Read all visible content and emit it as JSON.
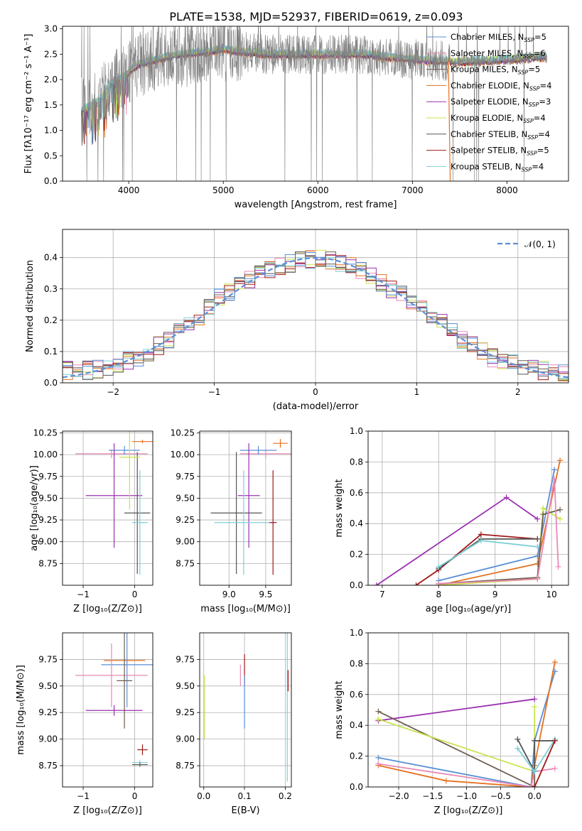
{
  "title": "PLATE=1538, MJD=52937, FIBERID=0619, z=0.093",
  "colors": {
    "chabrier_miles": "#5a8fd6",
    "salpeter_miles": "#e889b4",
    "kroupa_miles": "#6f5e4f",
    "chabrier_elodie": "#e5711f",
    "salpeter_elodie": "#9b2fb0",
    "kroupa_elodie": "#c9e34c",
    "chabrier_stelib": "#555555",
    "salpeter_stelib": "#a01818",
    "kroupa_stelib": "#7dcfd6",
    "data": "#808080",
    "normal": "#5a8fd6"
  },
  "chart_data": [
    {
      "id": "spectrum",
      "type": "line",
      "xlabel": "wavelength [Angstrom, rest frame]",
      "ylabel": "Flux [fλ10⁻¹⁷ erg cm⁻² s⁻¹ A⁻¹]",
      "xlim": [
        3300,
        8650
      ],
      "ylim": [
        0,
        3.05
      ],
      "xticks": [
        "4000",
        "5000",
        "6000",
        "7000",
        "8000"
      ],
      "yticks": [
        "0.0",
        "0.5",
        "1.0",
        "1.5",
        "2.0",
        "2.5",
        "3.0"
      ],
      "continuum": {
        "x": [
          3500,
          3600,
          3700,
          3800,
          3900,
          4000,
          4100,
          4200,
          4400,
          4600,
          4800,
          5000,
          5200,
          5500,
          6000,
          6500,
          7000,
          7500,
          8000,
          8400
        ],
        "y": [
          1.4,
          1.5,
          1.6,
          1.9,
          2.0,
          2.15,
          2.3,
          2.35,
          2.45,
          2.5,
          2.55,
          2.6,
          2.55,
          2.5,
          2.5,
          2.5,
          2.4,
          2.35,
          2.4,
          2.45
        ]
      },
      "legend": [
        {
          "label": "Chabrier MILES, N",
          "sub": "SSP",
          "n": "=5"
        },
        {
          "label": "Salpeter MILES, N",
          "sub": "SSP",
          "n": "=6"
        },
        {
          "label": "Kroupa MILES, N",
          "sub": "SSP",
          "n": "=5"
        },
        {
          "label": "Chabrier ELODIE, N",
          "sub": "SSP",
          "n": "=4"
        },
        {
          "label": "Salpeter ELODIE, N",
          "sub": "SSP",
          "n": "=3"
        },
        {
          "label": "Kroupa ELODIE, N",
          "sub": "SSP",
          "n": "=4"
        },
        {
          "label": "Chabrier STELIB, N",
          "sub": "SSP",
          "n": "=4"
        },
        {
          "label": "Salpeter STELIB, N",
          "sub": "SSP",
          "n": "=5"
        },
        {
          "label": "Kroupa STELIB, N",
          "sub": "SSP",
          "n": "=4"
        }
      ]
    },
    {
      "id": "residuals",
      "type": "bar",
      "xlabel": "(data-model)/error",
      "ylabel": "Normed distribution",
      "xlim": [
        -2.5,
        2.5
      ],
      "ylim": [
        0,
        0.49
      ],
      "xticks": [
        "−2",
        "−1",
        "0",
        "1",
        "2"
      ],
      "yticks": [
        "0.0",
        "0.1",
        "0.2",
        "0.3",
        "0.4"
      ],
      "legend": "𝒩(0, 1)",
      "grid": true,
      "bin_width": 0.1,
      "centers": [
        -2.45,
        -2.35,
        -2.25,
        -2.15,
        -2.05,
        -1.95,
        -1.85,
        -1.75,
        -1.65,
        -1.55,
        -1.45,
        -1.35,
        -1.25,
        -1.15,
        -1.05,
        -0.95,
        -0.85,
        -0.75,
        -0.65,
        -0.55,
        -0.45,
        -0.35,
        -0.25,
        -0.15,
        -0.05,
        0.05,
        0.15,
        0.25,
        0.35,
        0.45,
        0.55,
        0.65,
        0.75,
        0.85,
        0.95,
        1.05,
        1.15,
        1.25,
        1.35,
        1.45,
        1.55,
        1.65,
        1.75,
        1.85,
        1.95,
        2.05,
        2.15,
        2.25,
        2.35,
        2.45
      ],
      "base": [
        0.04,
        0.04,
        0.04,
        0.045,
        0.05,
        0.06,
        0.07,
        0.08,
        0.1,
        0.12,
        0.14,
        0.16,
        0.19,
        0.21,
        0.24,
        0.27,
        0.29,
        0.31,
        0.33,
        0.35,
        0.36,
        0.37,
        0.38,
        0.39,
        0.395,
        0.395,
        0.39,
        0.38,
        0.37,
        0.36,
        0.34,
        0.32,
        0.3,
        0.28,
        0.26,
        0.24,
        0.21,
        0.19,
        0.17,
        0.14,
        0.12,
        0.1,
        0.08,
        0.07,
        0.06,
        0.05,
        0.045,
        0.04,
        0.035,
        0.03
      ]
    },
    {
      "id": "age-vs-z",
      "type": "scatter",
      "xlabel": "Z [log₁₀(Z/Z⊙)]",
      "ylabel": "age  [log₁₀(age/yr)]",
      "xlim": [
        -1.4,
        0.35
      ],
      "ylim": [
        8.5,
        10.27
      ],
      "xticks": [
        "−1",
        "0"
      ],
      "yticks": [
        "8.75",
        "9.00",
        "9.25",
        "9.50",
        "9.75",
        "10.00",
        "10.25"
      ],
      "points": [
        {
          "s": "chabrier_elodie",
          "x": 0.15,
          "xerr": 0.2,
          "y": 10.15,
          "yerr": 0.02
        },
        {
          "s": "salpeter_miles",
          "x": -0.45,
          "xerr": 0.7,
          "y": 10.01,
          "yerr": 0.05
        },
        {
          "s": "chabrier_miles",
          "x": -0.2,
          "xerr": 0.3,
          "y": 10.05,
          "yerr": 0.05
        },
        {
          "s": "salpeter_elodie",
          "x": -0.4,
          "xerr": 0.55,
          "y": 9.53,
          "yerr": 0.6
        },
        {
          "s": "chabrier_stelib",
          "x": 0.05,
          "xerr": 0.25,
          "y": 9.33,
          "yerr": 0.7
        },
        {
          "s": "kroupa_stelib",
          "x": 0.1,
          "xerr": 0.15,
          "y": 9.22,
          "yerr": 0.6
        },
        {
          "s": "kroupa_elodie",
          "x": -0.1,
          "xerr": 0.2,
          "y": 9.97,
          "yerr": 0.6
        }
      ]
    },
    {
      "id": "age-vs-mass",
      "type": "scatter",
      "xlabel": "mass [log₁₀(M/M⊙)]",
      "ylabel": "",
      "xlim": [
        8.6,
        9.85
      ],
      "ylim": [
        8.5,
        10.27
      ],
      "xticks": [
        "9.0",
        "9.5"
      ],
      "yticks": [
        "8.75",
        "9.00",
        "9.25",
        "9.50",
        "9.75",
        "10.00",
        "10.25"
      ],
      "points": [
        {
          "s": "chabrier_elodie",
          "x": 9.7,
          "xerr": 0.1,
          "y": 10.13,
          "yerr": 0.05
        },
        {
          "s": "salpeter_miles",
          "x": 9.5,
          "xerr": 0.35,
          "y": 10.01,
          "yerr": 0.05
        },
        {
          "s": "chabrier_miles",
          "x": 9.4,
          "xerr": 0.25,
          "y": 10.05,
          "yerr": 0.05
        },
        {
          "s": "salpeter_elodie",
          "x": 9.27,
          "xerr": 0.15,
          "y": 9.53,
          "yerr": 0.6
        },
        {
          "s": "chabrier_stelib",
          "x": 9.1,
          "xerr": 0.35,
          "y": 9.33,
          "yerr": 0.7
        },
        {
          "s": "kroupa_stelib",
          "x": 9.2,
          "xerr": 0.4,
          "y": 9.22,
          "yerr": 0.6
        },
        {
          "s": "salpeter_stelib",
          "x": 9.6,
          "xerr": 0.05,
          "y": 9.22,
          "yerr": 0.6
        }
      ]
    },
    {
      "id": "weight-vs-age",
      "type": "line",
      "xlabel": "age  [log₁₀(age/yr)]",
      "ylabel": "mass weight",
      "xlim": [
        6.75,
        10.3
      ],
      "ylim": [
        0,
        1.0
      ],
      "xticks": [
        "7",
        "8",
        "9",
        "10"
      ],
      "yticks": [
        "0.0",
        "0.2",
        "0.4",
        "0.6",
        "0.8",
        "1.0"
      ],
      "series": [
        {
          "s": "salpeter_elodie",
          "x": [
            6.9,
            9.2,
            9.75
          ],
          "y": [
            0.0,
            0.57,
            0.43
          ]
        },
        {
          "s": "chabrier_elodie",
          "x": [
            8.0,
            9.75,
            10.15
          ],
          "y": [
            0.0,
            0.14,
            0.81
          ]
        },
        {
          "s": "chabrier_miles",
          "x": [
            8.0,
            9.75,
            10.05
          ],
          "y": [
            0.03,
            0.19,
            0.75
          ]
        },
        {
          "s": "salpeter_stelib",
          "x": [
            7.6,
            8.0,
            8.75,
            9.75
          ],
          "y": [
            0.0,
            0.1,
            0.33,
            0.3
          ]
        },
        {
          "s": "chabrier_stelib",
          "x": [
            8.0,
            8.75,
            9.75
          ],
          "y": [
            0.11,
            0.3,
            0.3
          ]
        },
        {
          "s": "kroupa_stelib",
          "x": [
            8.0,
            8.75,
            9.75
          ],
          "y": [
            0.12,
            0.29,
            0.25
          ]
        },
        {
          "s": "kroupa_elodie",
          "x": [
            8.0,
            9.75,
            9.85,
            10.15
          ],
          "y": [
            0.0,
            0.04,
            0.5,
            0.43
          ]
        },
        {
          "s": "kroupa_miles",
          "x": [
            8.0,
            9.75,
            9.85,
            10.15
          ],
          "y": [
            0.01,
            0.05,
            0.46,
            0.49
          ]
        },
        {
          "s": "salpeter_miles",
          "x": [
            8.0,
            9.75,
            10.05,
            10.12
          ],
          "y": [
            0.01,
            0.04,
            0.69,
            0.12
          ]
        }
      ]
    },
    {
      "id": "mass-vs-z",
      "type": "scatter",
      "xlabel": "Z [log₁₀(Z/Z⊙)]",
      "ylabel": "mass [log₁₀(M/M⊙)]",
      "xlim": [
        -1.4,
        0.35
      ],
      "ylim": [
        8.55,
        10.0
      ],
      "xticks": [
        "−1",
        "0"
      ],
      "yticks": [
        "8.75",
        "9.00",
        "9.25",
        "9.50",
        "9.75"
      ],
      "points": [
        {
          "s": "chabrier_elodie",
          "x": -0.2,
          "xerr": 0.4,
          "y": 9.74,
          "yerr": 0.02
        },
        {
          "s": "chabrier_miles",
          "x": -0.15,
          "xerr": 0.5,
          "y": 9.7,
          "yerr": 0.4
        },
        {
          "s": "salpeter_miles",
          "x": -0.45,
          "xerr": 0.7,
          "y": 9.6,
          "yerr": 0.3
        },
        {
          "s": "kroupa_miles",
          "x": -0.2,
          "xerr": 0.15,
          "y": 9.55,
          "yerr": 0.45
        },
        {
          "s": "salpeter_elodie",
          "x": -0.4,
          "xerr": 0.55,
          "y": 9.27,
          "yerr": 0.05
        },
        {
          "s": "salpeter_stelib",
          "x": 0.15,
          "xerr": 0.1,
          "y": 8.9,
          "yerr": 0.05
        },
        {
          "s": "kroupa_stelib",
          "x": 0.1,
          "xerr": 0.15,
          "y": 8.78,
          "yerr": 0.02
        },
        {
          "s": "chabrier_stelib",
          "x": 0.1,
          "xerr": 0.15,
          "y": 8.76,
          "yerr": 0.02
        }
      ]
    },
    {
      "id": "mass-vs-ebv",
      "type": "scatter",
      "xlabel": "E(B-V)",
      "ylabel": "",
      "xlim": [
        -0.01,
        0.215
      ],
      "ylim": [
        8.55,
        10.0
      ],
      "xticks": [
        "0.0",
        "0.1",
        "0.2"
      ],
      "yticks": [
        "8.75",
        "9.00",
        "9.25",
        "9.50",
        "9.75"
      ],
      "points": [
        {
          "s": "kroupa_elodie",
          "x": 0.002,
          "xerr": 0,
          "y": 9.3,
          "yerr": 0.3
        },
        {
          "s": "salpeter_miles",
          "x": 0.09,
          "xerr": 0,
          "y": 9.6,
          "yerr": 0.1
        },
        {
          "s": "salpeter_stelib",
          "x": 0.1,
          "xerr": 0,
          "y": 9.65,
          "yerr": 0.15
        },
        {
          "s": "chabrier_miles",
          "x": 0.1,
          "xerr": 0,
          "y": 9.35,
          "yerr": 0.25
        },
        {
          "s": "kroupa_stelib",
          "x": 0.205,
          "xerr": 0,
          "y": 9.3,
          "yerr": 0.7
        },
        {
          "s": "salpeter_stelib",
          "x": 0.207,
          "xerr": 0,
          "y": 9.55,
          "yerr": 0.1
        }
      ]
    },
    {
      "id": "weight-vs-z",
      "type": "line",
      "xlabel": "Z [log₁₀(Z/Z⊙)]",
      "ylabel": "mass weight",
      "xlim": [
        -2.45,
        0.5
      ],
      "ylim": [
        0,
        1.0
      ],
      "xticks": [
        "−2.0",
        "−1.5",
        "−1.0",
        "−0.5",
        "0.0"
      ],
      "yticks": [
        "0.0",
        "0.2",
        "0.4",
        "0.6",
        "0.8",
        "1.0"
      ],
      "series": [
        {
          "s": "salpeter_elodie",
          "x": [
            -2.3,
            0.0
          ],
          "y": [
            0.43,
            0.57
          ]
        },
        {
          "s": "kroupa_miles",
          "x": [
            -2.3,
            0.0,
            0.0,
            0.3
          ],
          "y": [
            0.49,
            0.0,
            0.3,
            0.3
          ]
        },
        {
          "s": "kroupa_elodie",
          "x": [
            -2.3,
            0.0,
            0.0
          ],
          "y": [
            0.44,
            0.1,
            0.52
          ]
        },
        {
          "s": "chabrier_miles",
          "x": [
            -2.3,
            -0.05,
            0.0,
            0.3
          ],
          "y": [
            0.19,
            0.0,
            0.3,
            0.75
          ]
        },
        {
          "s": "chabrier_elodie",
          "x": [
            -2.3,
            -1.3,
            -0.05,
            0.0,
            0.3
          ],
          "y": [
            0.14,
            0.04,
            0.0,
            0.14,
            0.81
          ]
        },
        {
          "s": "salpeter_miles",
          "x": [
            -2.3,
            -0.05,
            0.0,
            0.3
          ],
          "y": [
            0.15,
            0.0,
            0.1,
            0.12
          ]
        },
        {
          "s": "chabrier_stelib",
          "x": [
            -0.25,
            0.0,
            0.0,
            0.3
          ],
          "y": [
            0.31,
            0.1,
            0.3,
            0.3
          ]
        },
        {
          "s": "kroupa_stelib",
          "x": [
            -0.25,
            0.0,
            0.3
          ],
          "y": [
            0.25,
            0.1,
            0.31
          ]
        },
        {
          "s": "salpeter_stelib",
          "x": [
            0.0,
            0.3
          ],
          "y": [
            0.0,
            0.3
          ]
        }
      ]
    }
  ]
}
